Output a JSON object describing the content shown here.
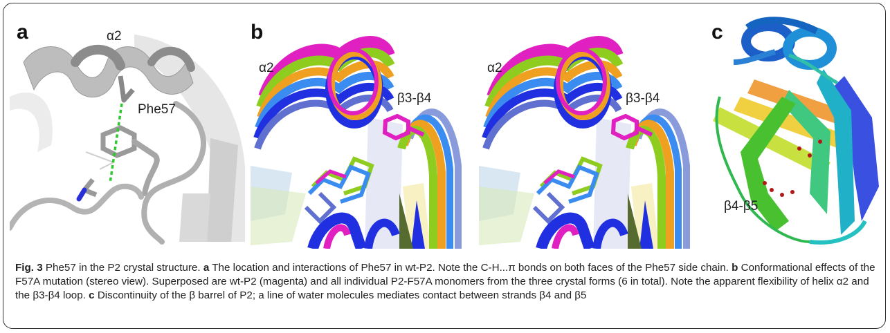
{
  "panels": {
    "a": {
      "letter": "a",
      "labels": {
        "helix": "α2",
        "residue": "Phe57"
      }
    },
    "b": {
      "letter": "b",
      "left_labels": {
        "helix": "α2",
        "loop": "β3-β4"
      },
      "right_labels": {
        "helix": "α2",
        "loop": "β3-β4"
      },
      "series_colors": [
        "#e020c0",
        "#2030e0",
        "#8fcc20",
        "#f0a020",
        "#3a8cf0",
        "#6070d0",
        "#8a9bdc"
      ]
    },
    "c": {
      "letter": "c",
      "labels": {
        "strands": "β4-β5"
      }
    }
  },
  "caption": {
    "fig_label": "Fig. 3",
    "title": " Phe57 in the P2 crystal structure. ",
    "a_label": "a",
    "a_text": " The location and interactions of Phe57 in wt-P2. Note the C-H...π bonds on both faces of the Phe57 side chain. ",
    "b_label": "b",
    "b_text": " Conformational effects of the F57A mutation (stereo view). Superposed are wt-P2 (magenta) and all individual P2-F57A monomers from the three crystal forms (6 in total). Note the apparent flexibility of helix α2 and the β3-β4 loop. ",
    "c_label": "c",
    "c_text": " Discontinuity of the β barrel of P2; a line of water molecules mediates contact between strands β4 and β5"
  }
}
